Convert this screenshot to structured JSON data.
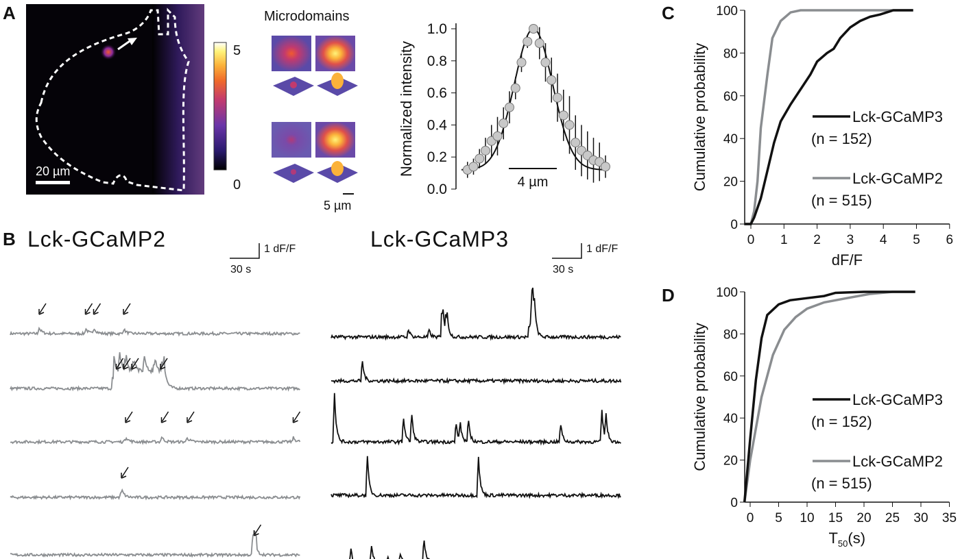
{
  "panels": {
    "A": "A",
    "B": "B",
    "C": "C",
    "D": "D"
  },
  "panelA": {
    "image_scalebar": "20 µm",
    "colorbar_max": "5",
    "colorbar_min": "0",
    "microdomains_title": "Microdomains",
    "thumb_scalebar": "5 µm",
    "colormap": [
      "#000000",
      "#2a1a6e",
      "#6a35a8",
      "#c23a6e",
      "#f06a2a",
      "#fbb23a",
      "#fff37a",
      "#ffffff"
    ]
  },
  "panelB": {
    "left_title": "Lck-GCaMP2",
    "right_title": "Lck-GCaMP3",
    "scalebar_y": "1 dF/F",
    "scalebar_x": "30 s",
    "left_color": "#8a8d90",
    "right_color": "#111111"
  },
  "chart_data": [
    {
      "type": "scatter",
      "panel": "A",
      "ylabel": "Normalized intensity",
      "scalebar": "4 µm",
      "ylim": [
        0,
        1.0
      ],
      "yticks": [
        "0.0",
        "0.2",
        "0.4",
        "0.6",
        "0.8",
        "1.0"
      ],
      "x_um": [
        -5.5,
        -5,
        -4.5,
        -4,
        -3.5,
        -3,
        -2.5,
        -2,
        -1.5,
        -1,
        -0.5,
        0,
        0.5,
        1,
        1.5,
        2,
        2.5,
        3,
        3.5,
        4,
        4.5,
        5,
        5.5,
        6
      ],
      "y": [
        0.12,
        0.14,
        0.19,
        0.24,
        0.3,
        0.33,
        0.41,
        0.51,
        0.63,
        0.79,
        0.92,
        1.0,
        0.91,
        0.79,
        0.68,
        0.57,
        0.46,
        0.4,
        0.29,
        0.24,
        0.21,
        0.18,
        0.17,
        0.14
      ],
      "err": [
        0.05,
        0.05,
        0.06,
        0.08,
        0.1,
        0.12,
        0.1,
        0.1,
        0.07,
        0.06,
        0.04,
        0.02,
        0.1,
        0.12,
        0.14,
        0.15,
        0.16,
        0.18,
        0.17,
        0.16,
        0.15,
        0.14,
        0.12,
        0.07
      ],
      "fit": {
        "type": "gaussian",
        "baseline": 0.12,
        "amplitude": 0.88,
        "sigma_um": 1.6
      }
    },
    {
      "type": "line",
      "panel": "C",
      "xlabel": "dF/F",
      "ylabel": "Cumulative probability",
      "xlim": [
        -0.2,
        6
      ],
      "ylim": [
        0,
        100
      ],
      "xticks": [
        "0",
        "1",
        "2",
        "3",
        "4",
        "5",
        "6"
      ],
      "yticks": [
        "0",
        "20",
        "40",
        "60",
        "80",
        "100"
      ],
      "series": [
        {
          "name": "Lck-GCaMP3",
          "n": "(n = 152)",
          "color": "#111111",
          "x": [
            -0.2,
            0,
            0.1,
            0.3,
            0.5,
            0.7,
            0.9,
            1.2,
            1.5,
            1.8,
            2.0,
            2.3,
            2.5,
            2.7,
            3.0,
            3.3,
            3.6,
            3.9,
            4.2,
            4.3,
            4.9
          ],
          "y": [
            0,
            0,
            3,
            12,
            25,
            38,
            48,
            56,
            63,
            70,
            76,
            80,
            82,
            87,
            92,
            95,
            97,
            98,
            99.5,
            100,
            100
          ]
        },
        {
          "name": "Lck-GCaMP2",
          "n": "(n = 515)",
          "color": "#8a8d90",
          "x": [
            -0.2,
            0,
            0.1,
            0.2,
            0.3,
            0.5,
            0.65,
            0.9,
            1.2,
            1.5,
            4.9
          ],
          "y": [
            0,
            0,
            6,
            20,
            45,
            70,
            87,
            95,
            99,
            100,
            100
          ]
        }
      ]
    },
    {
      "type": "line",
      "panel": "D",
      "xlabel": "T",
      "xlabel_sub": "50",
      "xlabel_unit": "(s)",
      "ylabel": "Cumulative probability",
      "xlim": [
        -1,
        35
      ],
      "ylim": [
        0,
        100
      ],
      "xticks": [
        "0",
        "5",
        "10",
        "15",
        "20",
        "25",
        "30",
        "35"
      ],
      "yticks": [
        "0",
        "20",
        "40",
        "60",
        "80",
        "100"
      ],
      "series": [
        {
          "name": "Lck-GCaMP3",
          "n": "(n = 152)",
          "color": "#111111",
          "x": [
            -1,
            0,
            1,
            2,
            3,
            5,
            7,
            10,
            13,
            15,
            20,
            29
          ],
          "y": [
            0,
            30,
            58,
            78,
            89,
            94,
            96,
            97,
            98,
            99.5,
            100,
            100
          ]
        },
        {
          "name": "Lck-GCaMP2",
          "n": "(n = 515)",
          "color": "#8a8d90",
          "x": [
            -1,
            0,
            2,
            4,
            6,
            8,
            10,
            13,
            17,
            21,
            25,
            29
          ],
          "y": [
            0,
            20,
            50,
            70,
            82,
            88,
            92,
            95,
            97,
            99,
            100,
            100
          ]
        }
      ]
    },
    {
      "type": "line",
      "panel": "B",
      "note_units": "event times in s, amplitudes in dF/F",
      "left_traces": [
        {
          "events": [
            [
              28,
              0.4
            ],
            [
              73,
              0.4
            ],
            [
              81,
              0.45
            ],
            [
              110,
              0.35
            ]
          ],
          "arrows": [
            28,
            73,
            81,
            110
          ]
        },
        {
          "events": [
            [
              100,
              1.3
            ],
            [
              106,
              1.4
            ],
            [
              112,
              1.3
            ],
            [
              120,
              1.1
            ],
            [
              130,
              1.2
            ],
            [
              140,
              1.1
            ],
            [
              148,
              1.0
            ],
            [
              150,
              0.9
            ]
          ],
          "arrows": [
            103,
            110,
            118,
            146
          ],
          "plateau": [
            100,
            150,
            1.2
          ]
        },
        {
          "events": [
            [
              112,
              0.4
            ],
            [
              147,
              0.35
            ],
            [
              172,
              0.3
            ],
            [
              275,
              0.3
            ]
          ],
          "arrows": [
            112,
            147,
            172,
            275
          ]
        },
        {
          "events": [
            [
              108,
              0.6
            ]
          ],
          "arrows": [
            108
          ]
        },
        {
          "events": [
            [
              237,
              1.0
            ]
          ],
          "arrows": [
            237
          ],
          "plateau": [
            235,
            240,
            0.9
          ]
        }
      ],
      "right_traces": [
        {
          "events": [
            [
              75,
              0.6
            ],
            [
              95,
              0.5
            ],
            [
              108,
              3.0
            ],
            [
              112,
              2.1
            ],
            [
              195,
              3.0
            ],
            [
              197,
              2.5
            ],
            [
              193,
              1.2
            ]
          ]
        },
        {
          "events": [
            [
              30,
              1.6
            ]
          ]
        },
        {
          "events": [
            [
              3,
              3.6
            ],
            [
              70,
              2.0
            ],
            [
              78,
              2.2
            ],
            [
              121,
              1.6
            ],
            [
              125,
              1.5
            ],
            [
              133,
              1.8
            ],
            [
              223,
              1.3
            ],
            [
              263,
              2.3
            ],
            [
              267,
              1.8
            ]
          ]
        },
        {
          "events": [
            [
              35,
              2.8
            ],
            [
              143,
              2.8
            ]
          ]
        },
        {
          "events": [
            [
              19,
              1.0
            ],
            [
              39,
              1.2
            ],
            [
              55,
              0.5
            ],
            [
              67,
              0.7
            ],
            [
              90,
              2.0
            ],
            [
              95,
              0.3
            ]
          ]
        }
      ]
    }
  ]
}
